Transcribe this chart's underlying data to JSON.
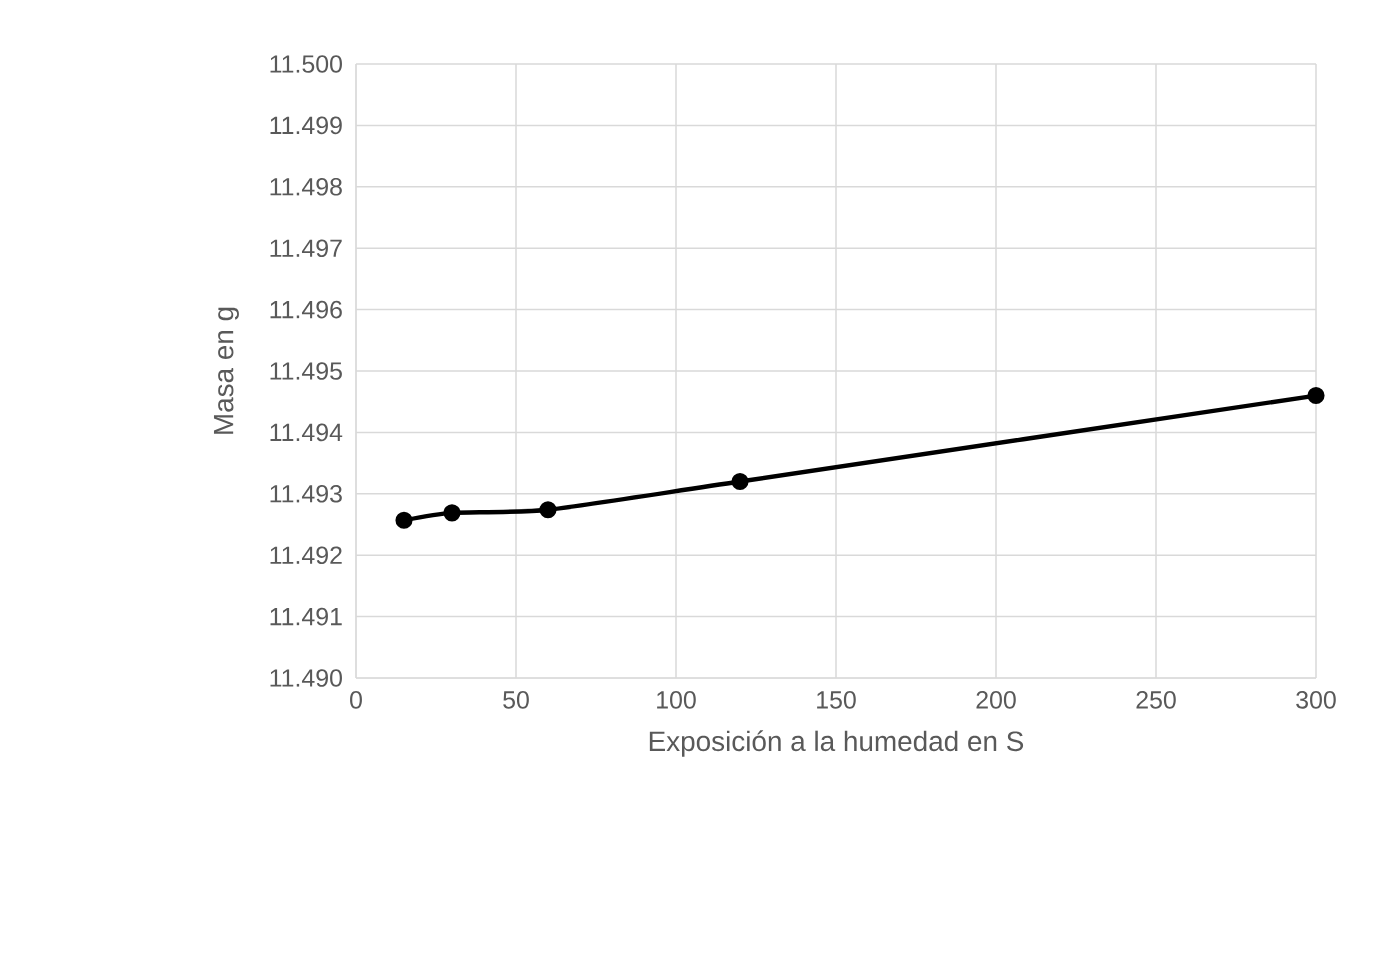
{
  "chart_data": {
    "type": "line",
    "xlabel": "Exposición a la humedad en S",
    "ylabel": "Masa en g",
    "x": [
      15,
      30,
      60,
      120,
      300
    ],
    "series": [
      {
        "color": "#000000",
        "values": [
          11.49257,
          11.49269,
          11.49274,
          11.4932,
          11.4946
        ]
      }
    ],
    "xlim": [
      0,
      300
    ],
    "xticks": [
      0,
      50,
      100,
      150,
      200,
      250,
      300
    ],
    "ylim": [
      11.49,
      11.5
    ],
    "yticks": [
      {
        "value": 11.49,
        "label": "11.490"
      },
      {
        "value": 11.491,
        "label": "11.491"
      },
      {
        "value": 11.492,
        "label": "11.492"
      },
      {
        "value": 11.493,
        "label": "11.493"
      },
      {
        "value": 11.494,
        "label": "11.494"
      },
      {
        "value": 11.495,
        "label": "11.495"
      },
      {
        "value": 11.496,
        "label": "11.496"
      },
      {
        "value": 11.497,
        "label": "11.497"
      },
      {
        "value": 11.498,
        "label": "11.498"
      },
      {
        "value": 11.499,
        "label": "11.499"
      },
      {
        "value": 11.5,
        "label": "11.500"
      }
    ],
    "grid": true,
    "marker": "circle",
    "line_style": "solid"
  }
}
